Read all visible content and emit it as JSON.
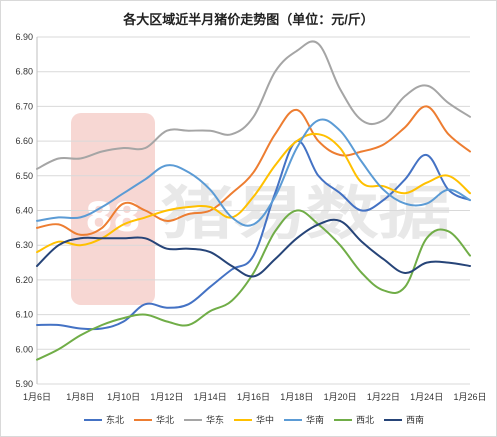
{
  "chart_data": {
    "type": "line",
    "title": "各大区域近半月猪价走势图（单位：元/斤）",
    "xlabel": "",
    "ylabel": "",
    "x": [
      "1月6日",
      "1月7日",
      "1月8日",
      "1月9日",
      "1月10日",
      "1月11日",
      "1月12日",
      "1月13日",
      "1月14日",
      "1月15日",
      "1月16日",
      "1月17日",
      "1月18日",
      "1月19日",
      "1月20日",
      "1月21日",
      "1月22日",
      "1月23日",
      "1月24日",
      "1月25日",
      "1月26日"
    ],
    "x_tick_labels": [
      "1月6日",
      "1月8日",
      "1月10日",
      "1月12日",
      "1月14日",
      "1月16日",
      "1月18日",
      "1月20日",
      "1月22日",
      "1月24日",
      "1月26日"
    ],
    "ylim": [
      5.9,
      6.9
    ],
    "y_ticks": [
      "5.90",
      "6.00",
      "6.10",
      "6.20",
      "6.30",
      "6.40",
      "6.50",
      "6.60",
      "6.70",
      "6.80",
      "6.90"
    ],
    "grid": "horizontal",
    "legend_position": "bottom",
    "series": [
      {
        "name": "东北",
        "color": "#4472c4",
        "values": [
          6.07,
          6.07,
          6.06,
          6.06,
          6.08,
          6.13,
          6.12,
          6.13,
          6.18,
          6.23,
          6.27,
          6.45,
          6.6,
          6.5,
          6.45,
          6.4,
          6.43,
          6.49,
          6.56,
          6.46,
          6.43
        ]
      },
      {
        "name": "华北",
        "color": "#ed7d31",
        "values": [
          6.35,
          6.36,
          6.33,
          6.35,
          6.42,
          6.4,
          6.37,
          6.39,
          6.4,
          6.45,
          6.51,
          6.62,
          6.69,
          6.6,
          6.56,
          6.57,
          6.59,
          6.64,
          6.7,
          6.62,
          6.57
        ]
      },
      {
        "name": "华东",
        "color": "#a5a5a5",
        "values": [
          6.52,
          6.55,
          6.55,
          6.57,
          6.58,
          6.58,
          6.63,
          6.63,
          6.63,
          6.62,
          6.67,
          6.8,
          6.86,
          6.88,
          6.75,
          6.66,
          6.66,
          6.73,
          6.76,
          6.71,
          6.67
        ]
      },
      {
        "name": "华中",
        "color": "#ffc000",
        "values": [
          6.28,
          6.31,
          6.3,
          6.32,
          6.36,
          6.38,
          6.4,
          6.41,
          6.41,
          6.38,
          6.44,
          6.53,
          6.6,
          6.62,
          6.58,
          6.48,
          6.47,
          6.45,
          6.48,
          6.5,
          6.45
        ]
      },
      {
        "name": "华南",
        "color": "#5b9bd5",
        "values": [
          6.37,
          6.38,
          6.38,
          6.41,
          6.45,
          6.49,
          6.53,
          6.51,
          6.46,
          6.38,
          6.36,
          6.44,
          6.58,
          6.66,
          6.63,
          6.54,
          6.46,
          6.42,
          6.42,
          6.46,
          6.43
        ]
      },
      {
        "name": "西北",
        "color": "#70ad47",
        "values": [
          5.97,
          6.0,
          6.04,
          6.07,
          6.09,
          6.1,
          6.08,
          6.07,
          6.11,
          6.14,
          6.22,
          6.34,
          6.4,
          6.36,
          6.3,
          6.22,
          6.17,
          6.18,
          6.32,
          6.34,
          6.27
        ]
      },
      {
        "name": "西南",
        "color": "#264478",
        "values": [
          6.24,
          6.3,
          6.32,
          6.32,
          6.32,
          6.32,
          6.29,
          6.29,
          6.28,
          6.24,
          6.21,
          6.26,
          6.32,
          6.36,
          6.37,
          6.31,
          6.26,
          6.22,
          6.25,
          6.25,
          6.24
        ]
      }
    ]
  },
  "watermark": {
    "text": "猪易数据",
    "logo_text": "88",
    "logo_color": "#f7d7d3"
  },
  "colors": {
    "grid": "#d9d9d9",
    "axis": "#bfbfbf"
  }
}
